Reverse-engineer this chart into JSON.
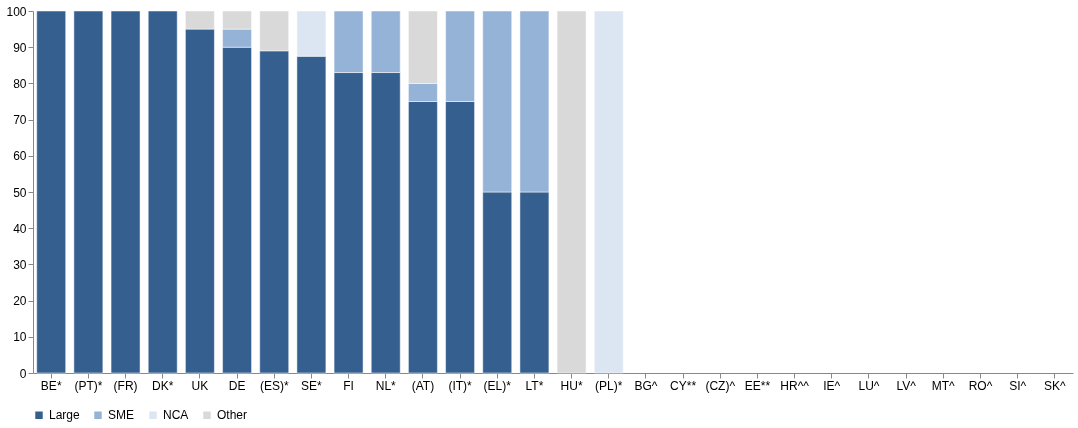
{
  "chart_data": {
    "type": "bar",
    "stacked": true,
    "categories": [
      "BE*",
      "(PT)*",
      "(FR)",
      "DK*",
      "UK",
      "DE",
      "(ES)*",
      "SE*",
      "FI",
      "NL*",
      "(AT)",
      "(IT)*",
      "(EL)*",
      "LT*",
      "HU*",
      "(PL)*",
      "BG^",
      "CY**",
      "(CZ)^",
      "EE**",
      "HR^^",
      "IE^",
      "LU^",
      "LV^",
      "MT^",
      "RO^",
      "SI^",
      "SK^"
    ],
    "series": [
      {
        "name": "Large",
        "color": "#355f8f",
        "values": [
          100,
          100,
          100,
          100,
          95,
          90,
          89,
          87.5,
          83,
          83,
          75,
          75,
          50,
          50,
          null,
          null,
          null,
          null,
          null,
          null,
          null,
          null,
          null,
          null,
          null,
          null,
          null,
          null
        ]
      },
      {
        "name": "SME",
        "color": "#95b3d7",
        "values": [
          null,
          null,
          null,
          null,
          null,
          5,
          null,
          null,
          17,
          17,
          5,
          25,
          50,
          50,
          null,
          null,
          null,
          null,
          null,
          null,
          null,
          null,
          null,
          null,
          null,
          null,
          null,
          null
        ]
      },
      {
        "name": "NCA",
        "color": "#dce6f2",
        "values": [
          null,
          null,
          null,
          null,
          null,
          null,
          null,
          12.5,
          null,
          null,
          null,
          null,
          null,
          null,
          null,
          100,
          null,
          null,
          null,
          null,
          null,
          null,
          null,
          null,
          null,
          null,
          null,
          null
        ]
      },
      {
        "name": "Other",
        "color": "#d9d9d9",
        "values": [
          null,
          null,
          null,
          null,
          5,
          5,
          11,
          null,
          null,
          null,
          20,
          null,
          null,
          null,
          100,
          null,
          null,
          null,
          null,
          null,
          null,
          null,
          null,
          null,
          null,
          null,
          null,
          null
        ]
      }
    ],
    "ylim": [
      0,
      100
    ],
    "yticks": [
      0,
      10,
      20,
      30,
      40,
      50,
      60,
      70,
      80,
      90,
      100
    ],
    "grid": false,
    "legend": "bottom"
  }
}
